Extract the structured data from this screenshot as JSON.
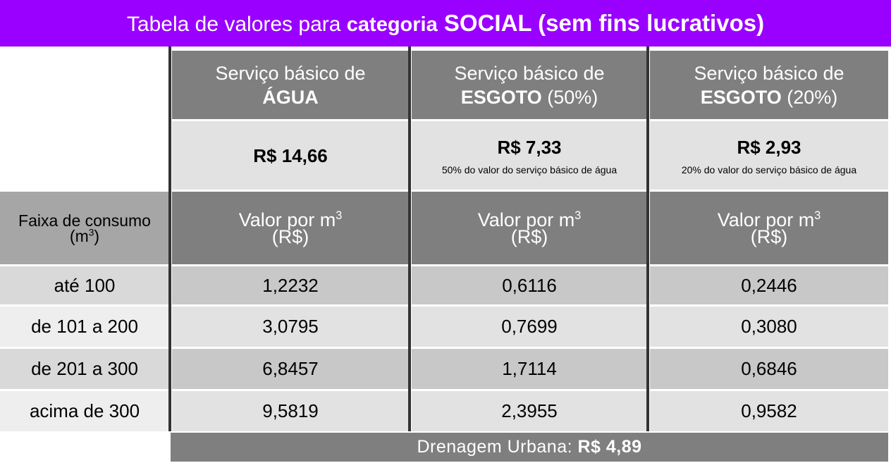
{
  "title": {
    "prefix": "Tabela de valores para ",
    "bold_small": "categoria",
    "bold_large": " SOCIAL (sem fins lucrativos)"
  },
  "services": [
    {
      "line1": "Serviço básico de",
      "bold": "ÁGUA",
      "suffix": "",
      "price": "R$ 14,66",
      "note": ""
    },
    {
      "line1": "Serviço básico de",
      "bold": "ESGOTO",
      "suffix": " (50%)",
      "price": "R$ 7,33",
      "note": "50% do valor do serviço básico de água"
    },
    {
      "line1": "Serviço básico de",
      "bold": "ESGOTO",
      "suffix": " (20%)",
      "price": "R$ 2,93",
      "note": "20% do valor do serviço básico de água"
    }
  ],
  "faixa_header": {
    "line1": "Faixa de consumo",
    "unit": "(m",
    "sup": "3",
    "close": ")"
  },
  "valor_header": {
    "line1": "Valor por m",
    "sup": "3",
    "line2": "(R$)"
  },
  "rows": [
    {
      "label": "até 100",
      "values": [
        "1,2232",
        "0,6116",
        "0,2446"
      ]
    },
    {
      "label": "de 101 a 200",
      "values": [
        "3,0795",
        "0,7699",
        "0,3080"
      ]
    },
    {
      "label": "de 201 a 300",
      "values": [
        "6,8457",
        "1,7114",
        "0,6846"
      ]
    },
    {
      "label": "acima de 300",
      "values": [
        "9,5819",
        "2,3955",
        "0,9582"
      ]
    }
  ],
  "footer": {
    "label": "Drenagem Urbana: ",
    "value": "R$ 4,89"
  },
  "colors": {
    "title_bg": "#9900ff",
    "header_bg": "#7f7f7f",
    "price_bg": "#e2e2e2",
    "faixa_bg": "#a6a6a6",
    "divider": "#333333"
  }
}
